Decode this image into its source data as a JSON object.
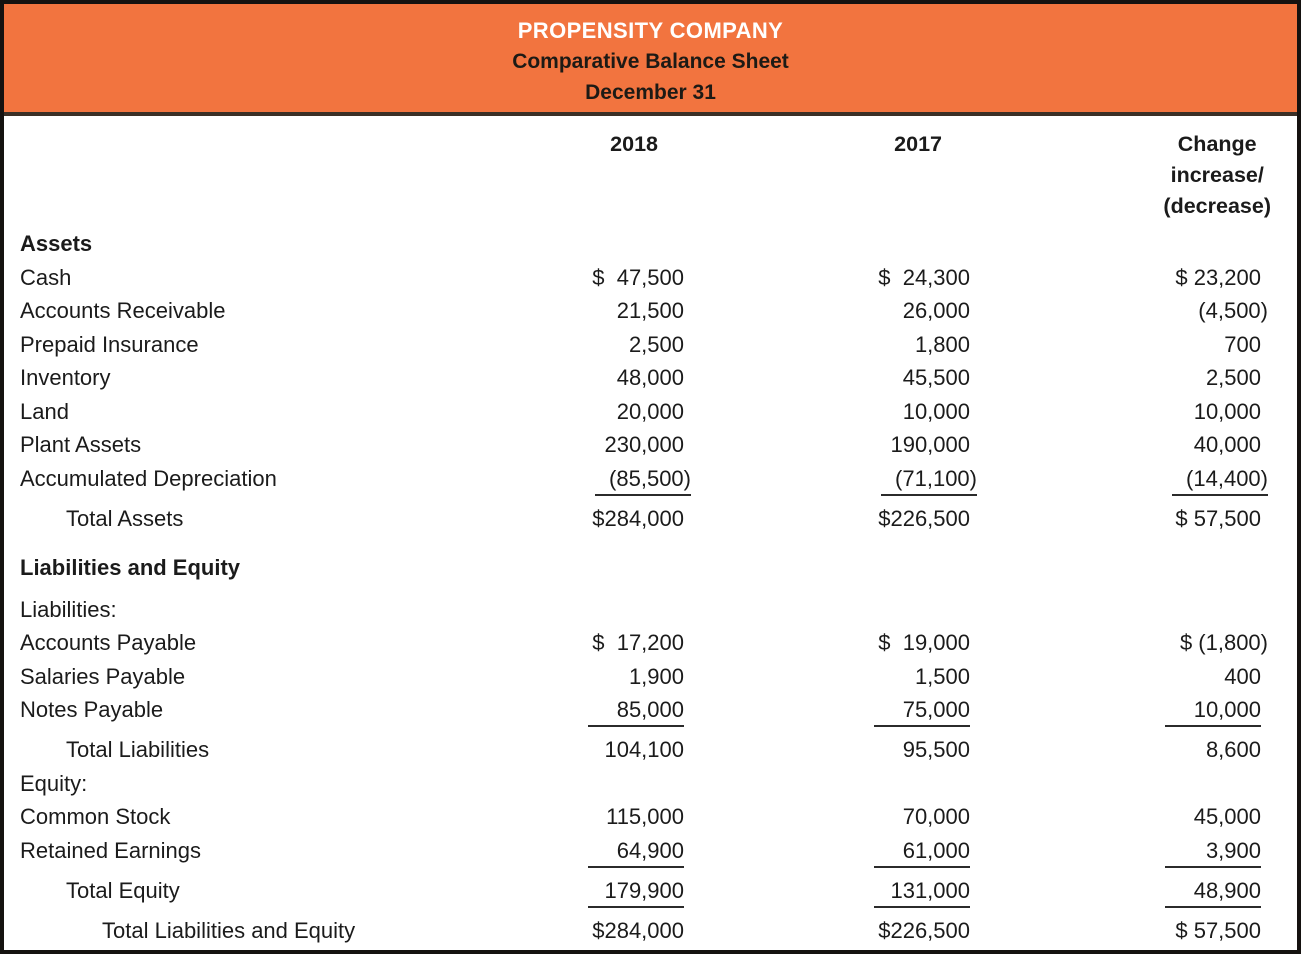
{
  "header": {
    "company": "PROPENSITY COMPANY",
    "title": "Comparative Balance Sheet",
    "date": "December 31"
  },
  "columns": {
    "y2018": "2018",
    "y2017": "2017",
    "change": [
      "Change",
      "increase/",
      "(decrease)"
    ]
  },
  "colors": {
    "header_bg": "#F2743F",
    "header_company_text": "#FFFFFF",
    "header_subtitle_text": "#1D1A15",
    "divider": "#3A2F26",
    "outer_border": "#151210",
    "body_text": "#1B1B1B"
  },
  "table": {
    "rows": [
      {
        "kind": "section",
        "label": "Assets"
      },
      {
        "kind": "item",
        "label": "Cash",
        "y2018": "$  47,500",
        "y2017": "$  24,300",
        "change": "$ 23,200"
      },
      {
        "kind": "item",
        "label": "Accounts Receivable",
        "y2018": "21,500",
        "y2017": "26,000",
        "change": "(4,500)"
      },
      {
        "kind": "item",
        "label": "Prepaid Insurance",
        "y2018": "2,500",
        "y2017": "1,800",
        "change": "700"
      },
      {
        "kind": "item",
        "label": "Inventory",
        "y2018": "48,000",
        "y2017": "45,500",
        "change": "2,500"
      },
      {
        "kind": "item",
        "label": "Land",
        "y2018": "20,000",
        "y2017": "10,000",
        "change": "10,000"
      },
      {
        "kind": "item",
        "label": "Plant Assets",
        "y2018": "230,000",
        "y2017": "190,000",
        "change": "40,000"
      },
      {
        "kind": "item",
        "label": "Accumulated Depreciation",
        "y2018": "(85,500)",
        "y2017": "(71,100)",
        "change": "(14,400)",
        "underline": true
      },
      {
        "kind": "item",
        "label": "Total Assets",
        "indent": 1,
        "y2018": "$284,000",
        "y2017": "$226,500",
        "change": "$ 57,500"
      },
      {
        "kind": "section",
        "label": "Liabilities and Equity"
      },
      {
        "kind": "subhead",
        "label": "Liabilities:"
      },
      {
        "kind": "item",
        "label": "Accounts Payable",
        "y2018": "$  17,200",
        "y2017": "$  19,000",
        "change": "$ (1,800)"
      },
      {
        "kind": "item",
        "label": "Salaries Payable",
        "y2018": "1,900",
        "y2017": "1,500",
        "change": "400"
      },
      {
        "kind": "item",
        "label": "Notes Payable",
        "y2018": "85,000",
        "y2017": "75,000",
        "change": "10,000",
        "underline": true
      },
      {
        "kind": "item",
        "label": "Total Liabilities",
        "indent": 1,
        "y2018": "104,100",
        "y2017": "95,500",
        "change": "8,600"
      },
      {
        "kind": "subhead",
        "label": "Equity:"
      },
      {
        "kind": "item",
        "label": "Common Stock",
        "y2018": "115,000",
        "y2017": "70,000",
        "change": "45,000"
      },
      {
        "kind": "item",
        "label": "Retained Earnings",
        "y2018": "64,900",
        "y2017": "61,000",
        "change": "3,900",
        "underline": true
      },
      {
        "kind": "item",
        "label": "Total Equity",
        "indent": 1,
        "y2018": "179,900",
        "y2017": "131,000",
        "change": "48,900",
        "underline": true
      },
      {
        "kind": "item",
        "label": "Total Liabilities and Equity",
        "indent": 2,
        "y2018": "$284,000",
        "y2017": "$226,500",
        "change": "$ 57,500"
      }
    ]
  }
}
